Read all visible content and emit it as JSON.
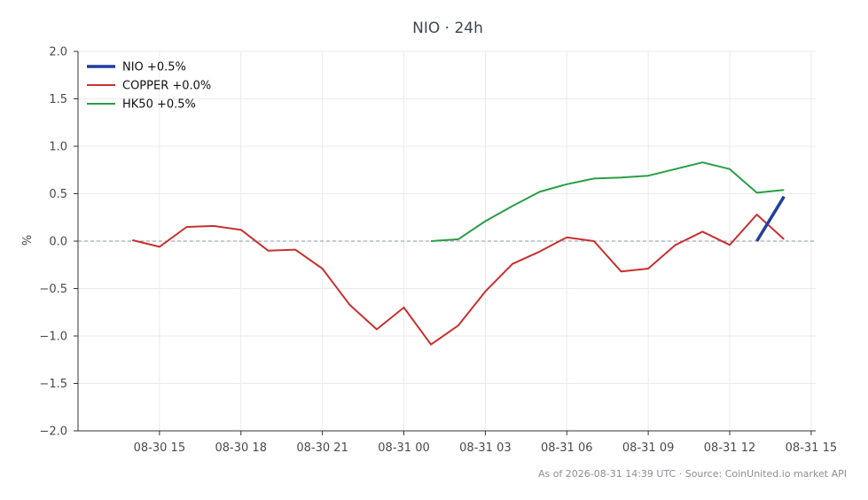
{
  "chart_data": {
    "type": "line",
    "title": "NIO · 24h",
    "ylabel": "%",
    "xlabel": "",
    "ylim": [
      -2.0,
      2.0
    ],
    "yticks": [
      2.0,
      1.5,
      1.0,
      0.5,
      0.0,
      -0.5,
      -1.0,
      -1.5,
      -2.0
    ],
    "ytick_labels": [
      "2.0",
      "1.5",
      "1.0",
      "0.5",
      "0.0",
      "−0.5",
      "−1.0",
      "−1.5",
      "−2.0"
    ],
    "xlim": [
      "2026-08-30 12:00",
      "2026-08-31 15:10"
    ],
    "xticks": [
      "2026-08-30 15:00",
      "2026-08-30 18:00",
      "2026-08-30 21:00",
      "2026-08-31 00:00",
      "2026-08-31 03:00",
      "2026-08-31 06:00",
      "2026-08-31 09:00",
      "2026-08-31 12:00",
      "2026-08-31 15:00"
    ],
    "xtick_labels": [
      "08-30 15",
      "08-30 18",
      "08-30 21",
      "08-31 00",
      "08-31 03",
      "08-31 06",
      "08-31 09",
      "08-31 12",
      "08-31 15"
    ],
    "grid": true,
    "legend_position": "top-left",
    "zero_line": true,
    "series": [
      {
        "name": "NIO +0.5%",
        "color": "#1f3f9e",
        "x": [
          "2026-08-31 13:00",
          "2026-08-31 14:00"
        ],
        "y": [
          0.0,
          0.47
        ]
      },
      {
        "name": "COPPER +0.0%",
        "color": "#c73131",
        "x": [
          "2026-08-30 14:00",
          "2026-08-30 15:00",
          "2026-08-30 16:00",
          "2026-08-30 17:00",
          "2026-08-30 18:00",
          "2026-08-30 19:00",
          "2026-08-30 20:00",
          "2026-08-30 21:00",
          "2026-08-30 22:00",
          "2026-08-30 23:00",
          "2026-08-31 00:00",
          "2026-08-31 01:00",
          "2026-08-31 02:00",
          "2026-08-31 03:00",
          "2026-08-31 04:00",
          "2026-08-31 05:00",
          "2026-08-31 06:00",
          "2026-08-31 07:00",
          "2026-08-31 08:00",
          "2026-08-31 09:00",
          "2026-08-31 10:00",
          "2026-08-31 11:00",
          "2026-08-31 12:00",
          "2026-08-31 13:00",
          "2026-08-31 14:00"
        ],
        "y": [
          0.01,
          -0.06,
          0.15,
          0.16,
          0.12,
          -0.1,
          -0.09,
          -0.29,
          -0.67,
          -0.93,
          -0.7,
          -1.09,
          -0.89,
          -0.53,
          -0.24,
          -0.11,
          0.04,
          0.0,
          -0.32,
          -0.29,
          -0.04,
          0.1,
          -0.04,
          0.28,
          0.02
        ]
      },
      {
        "name": "HK50 +0.5%",
        "color": "#2a9d47",
        "x": [
          "2026-08-31 01:00",
          "2026-08-31 02:00",
          "2026-08-31 03:00",
          "2026-08-31 04:00",
          "2026-08-31 05:00",
          "2026-08-31 06:00",
          "2026-08-31 07:00",
          "2026-08-31 08:00",
          "2026-08-31 09:00",
          "2026-08-31 10:00",
          "2026-08-31 11:00",
          "2026-08-31 12:00",
          "2026-08-31 13:00",
          "2026-08-31 14:00"
        ],
        "y": [
          0.0,
          0.02,
          0.21,
          0.37,
          0.52,
          0.6,
          0.66,
          0.67,
          0.69,
          0.76,
          0.83,
          0.76,
          0.51,
          0.54
        ]
      }
    ],
    "footer": "As of 2026-08-31 14:39 UTC · Source: CoinUnited.io market API"
  }
}
